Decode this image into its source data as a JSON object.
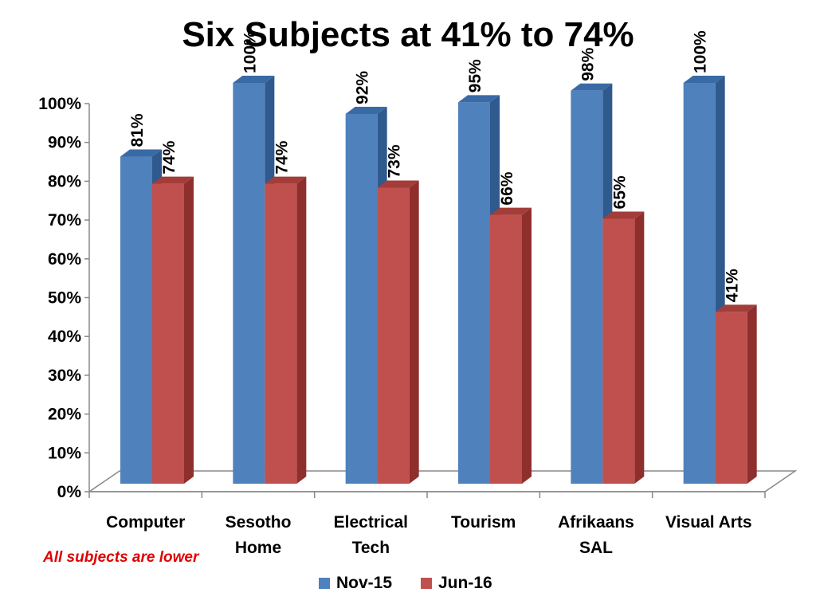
{
  "chart_data": {
    "type": "bar",
    "title": "Six Subjects at 41% to 74%",
    "categories": [
      [
        "Computer"
      ],
      [
        "Sesotho",
        "Home"
      ],
      [
        "Electrical",
        "Tech"
      ],
      [
        "Tourism"
      ],
      [
        "Afrikaans",
        "SAL"
      ],
      [
        "Visual Arts"
      ]
    ],
    "series": [
      {
        "name": "Nov-15",
        "values": [
          81,
          100,
          92,
          95,
          98,
          100
        ],
        "labels": [
          "81%",
          "100%",
          "92%",
          "95%",
          "98%",
          "100%"
        ]
      },
      {
        "name": "Jun-16",
        "values": [
          74,
          74,
          73,
          66,
          65,
          41
        ],
        "labels": [
          "74%",
          "74%",
          "73%",
          "66%",
          "65%",
          "41%"
        ]
      }
    ],
    "ylim": [
      0,
      100
    ],
    "yticks": [
      "0%",
      "10%",
      "20%",
      "30%",
      "40%",
      "50%",
      "60%",
      "70%",
      "80%",
      "90%",
      "100%"
    ],
    "legend": "bottom",
    "grid": false,
    "colors": {
      "nov_front": "#4f81bd",
      "nov_side": "#2e5a8e",
      "nov_top": "#3a6aa5",
      "jun_front": "#c0504d",
      "jun_side": "#8e2f2d",
      "jun_top": "#a33d3a"
    },
    "three_d": true
  },
  "annotation": {
    "text": "All subjects are lower"
  }
}
